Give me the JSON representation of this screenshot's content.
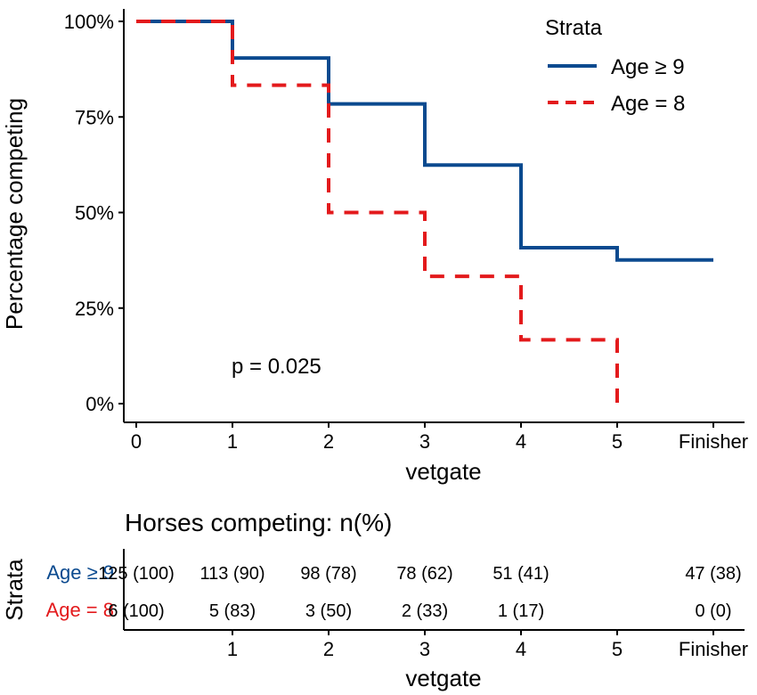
{
  "chart_data": [
    {
      "type": "line",
      "step": true,
      "ylabel": "Percentage competing",
      "xlabel": "vetgate",
      "x_ticks": [
        "0",
        "1",
        "2",
        "3",
        "4",
        "5",
        "Finisher"
      ],
      "y_ticks": [
        "0%",
        "25%",
        "50%",
        "75%",
        "100%"
      ],
      "ylim": [
        0,
        100
      ],
      "xlim": [
        0,
        6
      ],
      "grid": false,
      "legend_title": "Strata",
      "legend_position": "top-right",
      "annotation": "p = 0.025",
      "series": [
        {
          "name": "Age ≥ 9",
          "color": "#0b4a8f",
          "dash": "solid",
          "x": [
            0,
            1,
            2,
            3,
            4,
            5,
            6
          ],
          "y": [
            100,
            90.4,
            78.4,
            62.4,
            40.8,
            37.6,
            37.6
          ]
        },
        {
          "name": "Age = 8",
          "color": "#e31a1c",
          "dash": "dashed",
          "x": [
            0,
            1,
            2,
            3,
            4,
            5
          ],
          "y": [
            100,
            83.3,
            50,
            33.3,
            16.7,
            0
          ]
        }
      ]
    },
    {
      "type": "table",
      "title": "Horses competing: n(%)",
      "ylabel": "Strata",
      "xlabel": "vetgate",
      "x_ticks": [
        "1",
        "2",
        "3",
        "4",
        "5",
        "Finisher"
      ],
      "rows": [
        {
          "label": "Age ≥ 9",
          "color": "#0b4a8f",
          "x": [
            0,
            1,
            2,
            3,
            4,
            6
          ],
          "values": [
            "125 (100)",
            "113 (90)",
            "98 (78)",
            "78 (62)",
            "51 (41)",
            "47 (38)"
          ]
        },
        {
          "label": "Age = 8",
          "color": "#e31a1c",
          "x": [
            0,
            1,
            2,
            3,
            4,
            6
          ],
          "values": [
            "6 (100)",
            "5 (83)",
            "3 (50)",
            "2 (33)",
            "1 (17)",
            "0 (0)"
          ]
        }
      ]
    }
  ]
}
